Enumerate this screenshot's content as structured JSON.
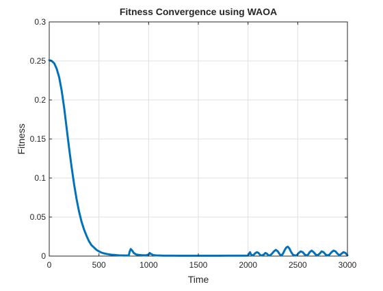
{
  "chart_data": {
    "type": "line",
    "title": "Fitness Convergence using WAOA",
    "xlabel": "Time",
    "ylabel": "Fitness",
    "xlim": [
      0,
      3000
    ],
    "ylim": [
      0,
      0.3
    ],
    "grid": true,
    "x_ticks": [
      "0",
      "500",
      "1000",
      "1500",
      "2000",
      "2500",
      "3000"
    ],
    "y_ticks": [
      "0",
      "0.05",
      "0.1",
      "0.15",
      "0.2",
      "0.25",
      "0.3"
    ],
    "series": [
      {
        "color": "#0072BD",
        "x": [
          0,
          25,
          50,
          75,
          100,
          125,
          150,
          175,
          200,
          225,
          250,
          275,
          300,
          325,
          350,
          375,
          400,
          425,
          450,
          475,
          500,
          525,
          550,
          575,
          600,
          625,
          650,
          675,
          700,
          725,
          750,
          775,
          800,
          810,
          820,
          835,
          850,
          875,
          900,
          925,
          950,
          975,
          1000,
          1010,
          1020,
          1035,
          1050,
          1075,
          1100,
          1150,
          1200,
          1250,
          1300,
          1400,
          1500,
          1600,
          1700,
          1800,
          1900,
          1950,
          2000,
          2010,
          2020,
          2030,
          2045,
          2060,
          2075,
          2090,
          2105,
          2125,
          2140,
          2160,
          2175,
          2190,
          2205,
          2220,
          2240,
          2260,
          2280,
          2300,
          2320,
          2340,
          2355,
          2370,
          2385,
          2400,
          2415,
          2430,
          2450,
          2470,
          2490,
          2510,
          2530,
          2550,
          2570,
          2590,
          2605,
          2620,
          2640,
          2660,
          2680,
          2700,
          2720,
          2740,
          2760,
          2780,
          2800,
          2820,
          2840,
          2860,
          2880,
          2900,
          2920,
          2940,
          2960,
          2980,
          3000
        ],
        "y": [
          0.251,
          0.25,
          0.247,
          0.24,
          0.229,
          0.212,
          0.19,
          0.164,
          0.138,
          0.114,
          0.092,
          0.073,
          0.057,
          0.044,
          0.034,
          0.026,
          0.019,
          0.014,
          0.011,
          0.008,
          0.006,
          0.0045,
          0.0035,
          0.0028,
          0.0022,
          0.0018,
          0.0015,
          0.0012,
          0.001,
          0.0009,
          0.0008,
          0.0008,
          0.0008,
          0.006,
          0.009,
          0.007,
          0.004,
          0.002,
          0.0015,
          0.0012,
          0.001,
          0.001,
          0.002,
          0.004,
          0.003,
          0.002,
          0.0012,
          0.0009,
          0.0008,
          0.0006,
          0.0005,
          0.0005,
          0.0004,
          0.0004,
          0.0004,
          0.0004,
          0.0004,
          0.0005,
          0.0005,
          0.0005,
          0.0006,
          0.003,
          0.005,
          0.002,
          0.0008,
          0.002,
          0.004,
          0.005,
          0.004,
          0.001,
          0.0008,
          0.002,
          0.004,
          0.003,
          0.001,
          0.0008,
          0.003,
          0.006,
          0.008,
          0.006,
          0.002,
          0.001,
          0.004,
          0.008,
          0.011,
          0.012,
          0.01,
          0.006,
          0.002,
          0.0008,
          0.001,
          0.004,
          0.006,
          0.005,
          0.002,
          0.0008,
          0.002,
          0.005,
          0.007,
          0.005,
          0.002,
          0.001,
          0.003,
          0.006,
          0.005,
          0.002,
          0.0008,
          0.002,
          0.005,
          0.007,
          0.006,
          0.003,
          0.001,
          0.003,
          0.005,
          0.004,
          0.001
        ]
      }
    ]
  }
}
